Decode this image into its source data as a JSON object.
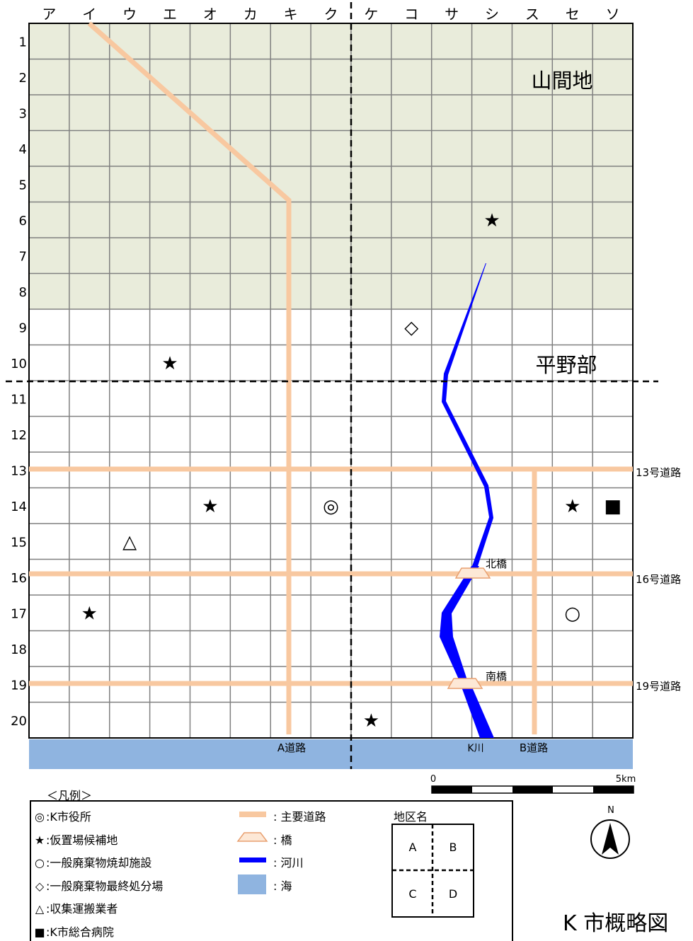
{
  "columns": [
    "ア",
    "イ",
    "ウ",
    "エ",
    "オ",
    "カ",
    "キ",
    "ク",
    "ケ",
    "コ",
    "サ",
    "シ",
    "ス",
    "セ",
    "ソ"
  ],
  "rows": [
    "1",
    "2",
    "3",
    "4",
    "5",
    "6",
    "7",
    "8",
    "9",
    "10",
    "11",
    "12",
    "13",
    "14",
    "15",
    "16",
    "17",
    "18",
    "19",
    "20"
  ],
  "regions": {
    "mountain": "山間地",
    "plain": "平野部"
  },
  "roads": {
    "r13": "13号道路",
    "r16": "16号道路",
    "r19": "19号道路",
    "a": "A道路",
    "b": "B道路"
  },
  "river": "K川",
  "bridges": {
    "north": "北橋",
    "south": "南橋"
  },
  "scale": {
    "zero": "0",
    "max": "5km"
  },
  "north_label": "N",
  "title": "K 市概略図",
  "legend": {
    "heading": "＜凡例＞",
    "items": [
      {
        "symbol": "◎",
        "label": "K市役所"
      },
      {
        "symbol": "★",
        "label": "仮置場候補地"
      },
      {
        "symbol": "○",
        "label": "一般廃棄物焼却施設"
      },
      {
        "symbol": "◇",
        "label": "一般廃棄物最終処分場"
      },
      {
        "symbol": "△",
        "label": "収集運搬業者"
      },
      {
        "symbol": "■",
        "label": "K市総合病院"
      }
    ],
    "lines": [
      {
        "key": "road",
        "label": "主要道路"
      },
      {
        "key": "bridge",
        "label": "橋"
      },
      {
        "key": "river",
        "label": "河川"
      },
      {
        "key": "sea",
        "label": "海"
      }
    ],
    "district_title": "地区名",
    "districts": [
      "A",
      "B",
      "C",
      "D"
    ]
  },
  "markers": [
    {
      "symbol": "★",
      "col": "シ",
      "row": "6"
    },
    {
      "symbol": "◇",
      "col": "コ",
      "row": "9"
    },
    {
      "symbol": "★",
      "col": "エ",
      "row": "10"
    },
    {
      "symbol": "★",
      "col": "オ",
      "row": "14"
    },
    {
      "symbol": "◎",
      "col": "ク",
      "row": "14"
    },
    {
      "symbol": "★",
      "col": "セ",
      "row": "14"
    },
    {
      "symbol": "■",
      "col": "ソ",
      "row": "14"
    },
    {
      "symbol": "△",
      "col": "ウ",
      "row": "15"
    },
    {
      "symbol": "★",
      "col": "イ",
      "row": "17"
    },
    {
      "symbol": "○",
      "col": "セ",
      "row": "17"
    },
    {
      "symbol": "★",
      "col": "ケ",
      "row": "20"
    }
  ],
  "colors": {
    "mountain": "#e9ecdb",
    "road": "#f8c8a0",
    "river": "#0000ff",
    "sea": "#8fb4e0",
    "grid": "#808080"
  }
}
